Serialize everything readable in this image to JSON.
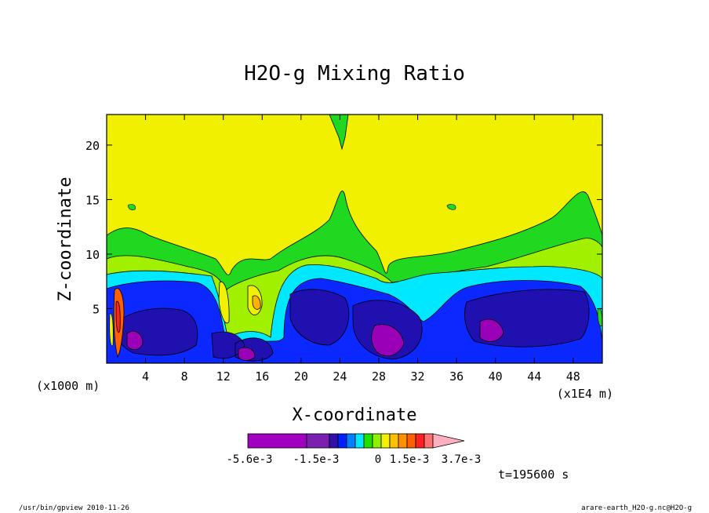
{
  "chart_data": {
    "type": "heatmap",
    "title": "H2O-g Mixing Ratio",
    "xlabel": "X-coordinate",
    "ylabel": "Z-coordinate",
    "x_units_left": "(x1000 m)",
    "x_units_right": "(x1E4 m)",
    "x_ticks": [
      "4",
      "8",
      "12",
      "16",
      "20",
      "24",
      "28",
      "32",
      "36",
      "40",
      "44",
      "48"
    ],
    "x_tick_values": [
      4,
      8,
      12,
      16,
      20,
      24,
      28,
      32,
      36,
      40,
      44,
      48
    ],
    "y_ticks": [
      "5",
      "10",
      "15",
      "20"
    ],
    "y_tick_values": [
      5,
      10,
      15,
      20
    ],
    "xlim": [
      0,
      51
    ],
    "ylim": [
      0,
      22.8
    ],
    "colorbar": {
      "labels": [
        "-5.6e-3",
        "-1.5e-3",
        "0",
        "1.5e-3",
        "3.7e-3"
      ],
      "colors": [
        "#a000c0",
        "#7a1fb0",
        "#3010a8",
        "#0020ff",
        "#0080ff",
        "#00e8ff",
        "#20e000",
        "#90f000",
        "#f0f000",
        "#ffc000",
        "#ff9000",
        "#ff6000",
        "#ff2020",
        "#ff7070",
        "#ffb0c0"
      ]
    },
    "palette": {
      "deep_purple": "#9a00b8",
      "dark_blue": "#2010b0",
      "blue": "#0a28ff",
      "cyan": "#00e8ff",
      "green": "#20d820",
      "light_green": "#a0f000",
      "yellow": "#f0f000",
      "orange": "#ffb000"
    },
    "timestamp": "t=195600 s"
  },
  "footer": {
    "left": "/usr/bin/gpview  2010-11-26",
    "right": "arare-earth_H2O-g.nc@H2O-g"
  }
}
